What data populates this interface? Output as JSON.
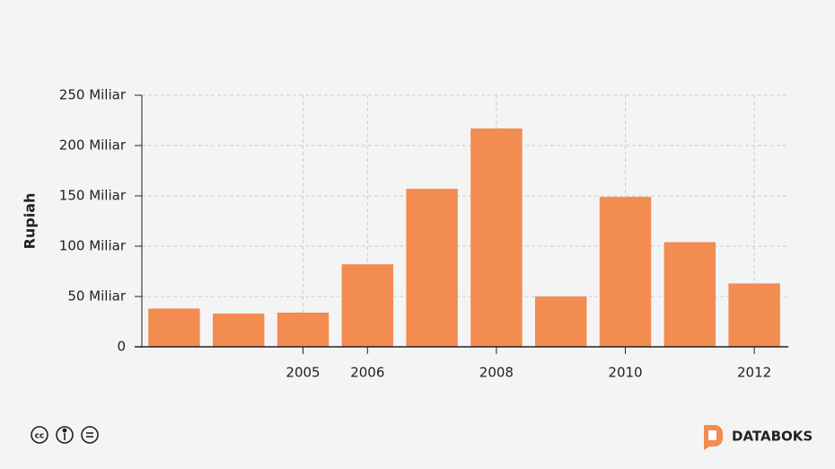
{
  "chart_data": {
    "type": "bar",
    "y_label": "Rupiah",
    "categories": [
      null,
      null,
      "2005",
      "2006",
      null,
      "2008",
      null,
      "2010",
      null,
      "2012"
    ],
    "values": [
      38,
      33,
      34,
      82,
      157,
      217,
      50,
      149,
      104,
      63
    ],
    "color": "#f28c50",
    "ylim": [
      0,
      250
    ],
    "yticks": [
      0,
      {
        "value": 50,
        "label": "50 Miliar"
      },
      {
        "value": 100,
        "label": "100 Miliar"
      },
      {
        "value": 150,
        "label": "150 Miliar"
      },
      {
        "value": 200,
        "label": "200 Miliar"
      },
      {
        "value": 250,
        "label": "250 Miliar"
      }
    ],
    "grid": true
  },
  "brand": "DATABOKS"
}
